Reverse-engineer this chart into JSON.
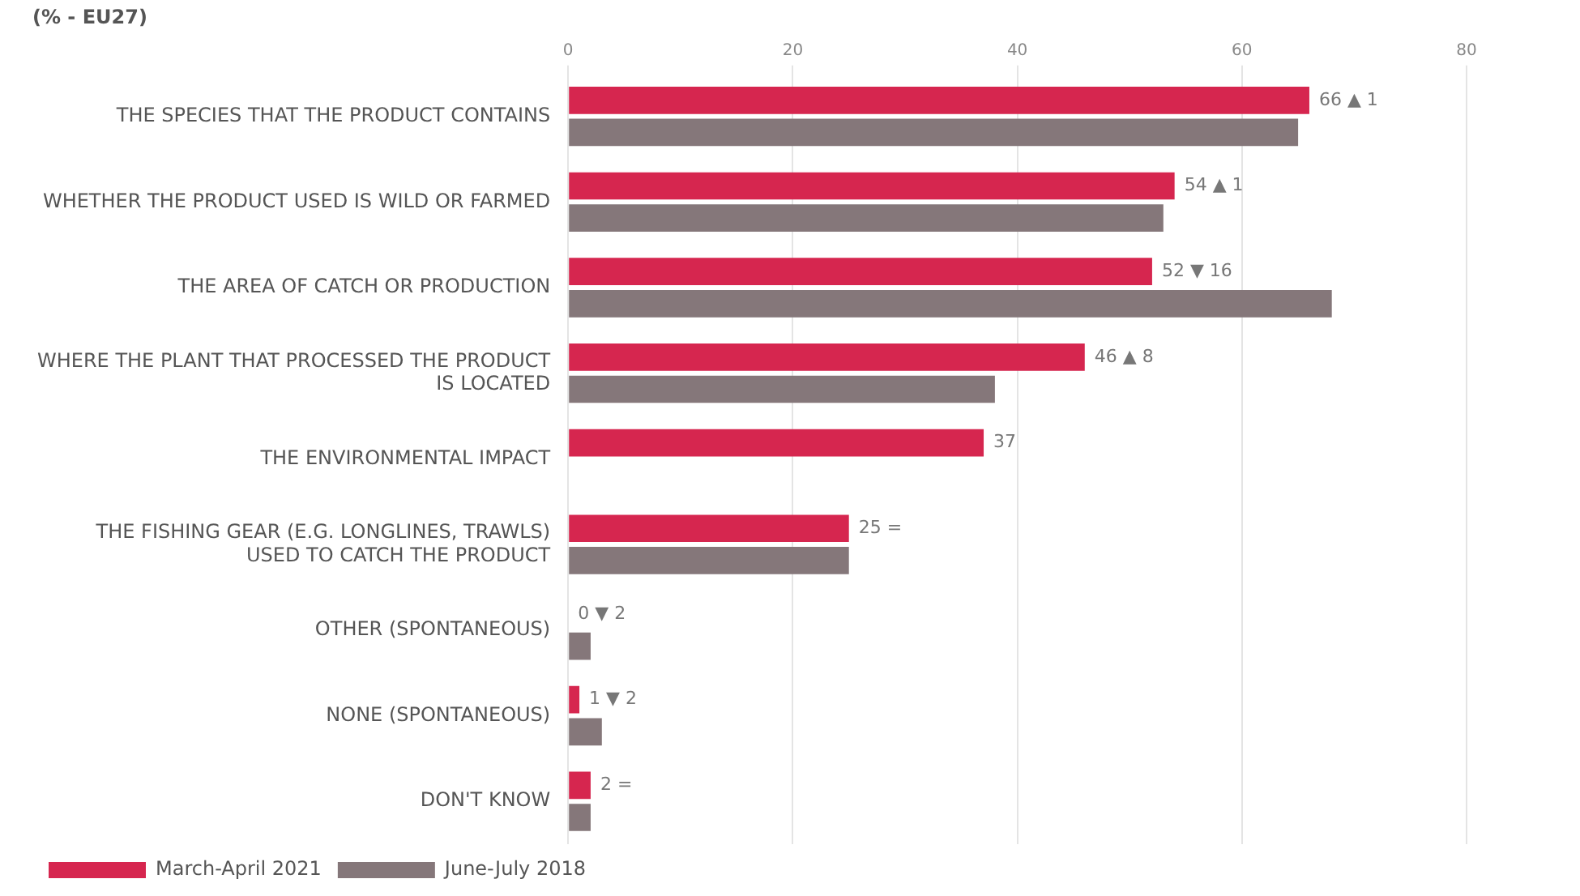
{
  "chart_data": {
    "type": "bar",
    "orientation": "horizontal",
    "title": "(% - EU27)",
    "categories": [
      "THE SPECIES THAT THE PRODUCT CONTAINS",
      "WHETHER THE PRODUCT USED IS WILD OR FARMED",
      "THE AREA OF CATCH OR PRODUCTION",
      "WHERE THE PLANT THAT PROCESSED THE PRODUCT IS LOCATED",
      "THE ENVIRONMENTAL IMPACT",
      "THE FISHING GEAR (E.G. LONGLINES, TRAWLS) USED TO CATCH THE PRODUCT",
      "OTHER (SPONTANEOUS)",
      "NONE (SPONTANEOUS)",
      "DON'T KNOW"
    ],
    "series": [
      {
        "name": "March-April 2021",
        "color": "#d6264f",
        "values": [
          66,
          54,
          52,
          46,
          37,
          25,
          0,
          1,
          2
        ],
        "value_labels": [
          "66 ▲ 1",
          "54 ▲ 1",
          "52 ▼ 16",
          "46 ▲ 8",
          "37",
          "25 =",
          "0 ▼ 2",
          "1 ▼ 2",
          "2 ="
        ]
      },
      {
        "name": "June-July 2018",
        "color": "#85777a",
        "values": [
          65,
          53,
          68,
          38,
          null,
          25,
          2,
          3,
          2
        ]
      }
    ],
    "xlim": [
      0,
      80
    ],
    "xticks": [
      0,
      20,
      40,
      60,
      80
    ],
    "grid": "x",
    "legend": "bottom left"
  }
}
